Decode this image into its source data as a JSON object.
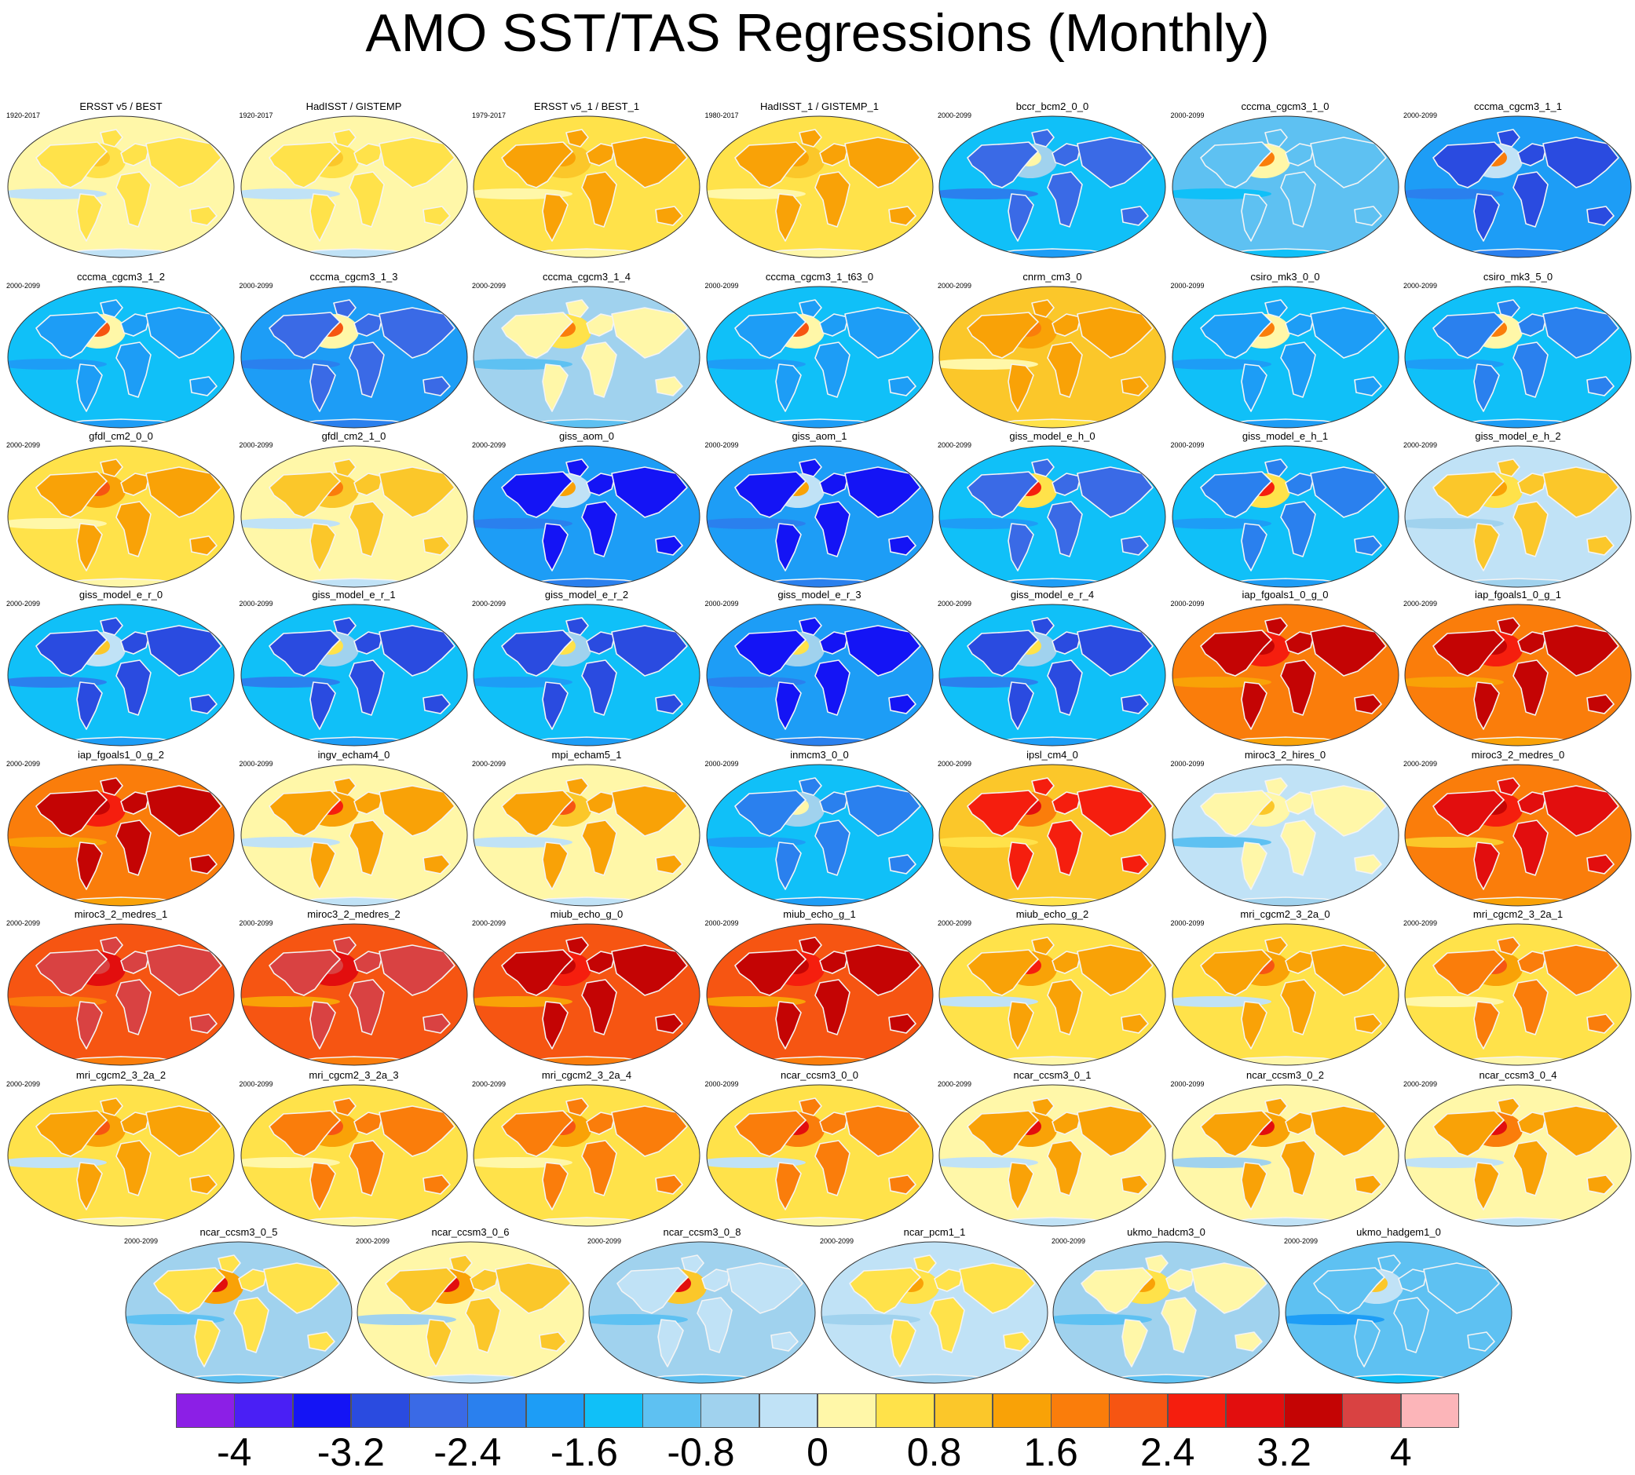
{
  "title": "AMO SST/TAS Regressions (Monthly)",
  "panels": [
    {
      "name": "ERSST v5 / BEST",
      "period": "1920-2017",
      "amo": 1.0,
      "land": 0.6,
      "bg": 0.1
    },
    {
      "name": "HadISST / GISTEMP",
      "period": "1920-2017",
      "amo": 1.0,
      "land": 0.5,
      "bg": 0.1
    },
    {
      "name": "ERSST v5_1 / BEST_1",
      "period": "1979-2017",
      "amo": 1.3,
      "land": 1.2,
      "bg": 0.6
    },
    {
      "name": "HadISST_1 / GISTEMP_1",
      "period": "1980-2017",
      "amo": 1.3,
      "land": 1.2,
      "bg": 0.6
    },
    {
      "name": "bccr_bcm2_0_0",
      "period": "2000-2099",
      "amo": 0.0,
      "land": -2.6,
      "bg": -1.6
    },
    {
      "name": "cccma_cgcm3_1_0",
      "period": "2000-2099",
      "amo": 1.6,
      "land": -1.2,
      "bg": -0.9
    },
    {
      "name": "cccma_cgcm3_1_1",
      "period": "2000-2099",
      "amo": 1.6,
      "land": -3.0,
      "bg": -1.8
    },
    {
      "name": "cccma_cgcm3_1_2",
      "period": "2000-2099",
      "amo": 2.0,
      "land": -2.0,
      "bg": -1.5
    },
    {
      "name": "cccma_cgcm3_1_3",
      "period": "2000-2099",
      "amo": 2.0,
      "land": -2.6,
      "bg": -1.8
    },
    {
      "name": "cccma_cgcm3_1_4",
      "period": "2000-2099",
      "amo": 1.8,
      "land": 0.3,
      "bg": -0.5
    },
    {
      "name": "cccma_cgcm3_1_t63_0",
      "period": "2000-2099",
      "amo": 2.0,
      "land": -1.8,
      "bg": -1.4
    },
    {
      "name": "cnrm_cm3_0",
      "period": "2000-2099",
      "amo": 1.6,
      "land": 1.4,
      "bg": 0.8
    },
    {
      "name": "csiro_mk3_0_0",
      "period": "2000-2099",
      "amo": 1.8,
      "land": -2.0,
      "bg": -1.4
    },
    {
      "name": "csiro_mk3_5_0",
      "period": "2000-2099",
      "amo": 1.8,
      "land": -2.2,
      "bg": -1.5
    },
    {
      "name": "gfdl_cm2_0_0",
      "period": "2000-2099",
      "amo": 2.0,
      "land": 1.5,
      "bg": 0.6
    },
    {
      "name": "gfdl_cm2_1_0",
      "period": "2000-2099",
      "amo": 1.8,
      "land": 1.0,
      "bg": 0.2
    },
    {
      "name": "giss_aom_0",
      "period": "2000-2099",
      "amo": 1.5,
      "land": -3.4,
      "bg": -1.8
    },
    {
      "name": "giss_aom_1",
      "period": "2000-2099",
      "amo": 1.5,
      "land": -3.4,
      "bg": -1.8
    },
    {
      "name": "giss_model_e_h_0",
      "period": "2000-2099",
      "amo": 2.6,
      "land": -2.6,
      "bg": -1.5
    },
    {
      "name": "giss_model_e_h_1",
      "period": "2000-2099",
      "amo": 2.6,
      "land": -2.4,
      "bg": -1.4
    },
    {
      "name": "giss_model_e_h_2",
      "period": "2000-2099",
      "amo": 1.4,
      "land": 0.8,
      "bg": -0.2
    },
    {
      "name": "giss_model_e_r_0",
      "period": "2000-2099",
      "amo": 1.0,
      "land": -3.2,
      "bg": -1.6
    },
    {
      "name": "giss_model_e_r_1",
      "period": "2000-2099",
      "amo": 0.6,
      "land": -3.0,
      "bg": -1.6
    },
    {
      "name": "giss_model_e_r_2",
      "period": "2000-2099",
      "amo": 0.4,
      "land": -3.0,
      "bg": -1.5
    },
    {
      "name": "giss_model_e_r_3",
      "period": "2000-2099",
      "amo": 0.4,
      "land": -3.4,
      "bg": -1.7
    },
    {
      "name": "giss_model_e_r_4",
      "period": "2000-2099",
      "amo": 0.6,
      "land": -3.2,
      "bg": -1.6
    },
    {
      "name": "iap_fgoals1_0_g_0",
      "period": "2000-2099",
      "amo": 3.4,
      "land": 3.4,
      "bg": 1.8
    },
    {
      "name": "iap_fgoals1_0_g_1",
      "period": "2000-2099",
      "amo": 3.4,
      "land": 3.4,
      "bg": 1.8
    },
    {
      "name": "iap_fgoals1_0_g_2",
      "period": "2000-2099",
      "amo": 3.4,
      "land": 3.2,
      "bg": 1.8
    },
    {
      "name": "ingv_echam4_0",
      "period": "2000-2099",
      "amo": 2.4,
      "land": 1.4,
      "bg": 0.2
    },
    {
      "name": "mpi_echam5_1",
      "period": "2000-2099",
      "amo": 2.0,
      "land": 1.4,
      "bg": 0.3
    },
    {
      "name": "inmcm3_0_0",
      "period": "2000-2099",
      "amo": 0.2,
      "land": -2.2,
      "bg": -1.4
    },
    {
      "name": "ipsl_cm4_0",
      "period": "2000-2099",
      "amo": 2.8,
      "land": 2.4,
      "bg": 1.0
    },
    {
      "name": "miroc3_2_hires_0",
      "period": "2000-2099",
      "amo": 0.8,
      "land": 0.2,
      "bg": -0.4
    },
    {
      "name": "miroc3_2_medres_0",
      "period": "2000-2099",
      "amo": 3.2,
      "land": 3.0,
      "bg": 1.6
    },
    {
      "name": "miroc3_2_medres_1",
      "period": "2000-2099",
      "amo": 3.6,
      "land": 3.6,
      "bg": 2.2
    },
    {
      "name": "miroc3_2_medres_2",
      "period": "2000-2099",
      "amo": 3.6,
      "land": 3.6,
      "bg": 2.0
    },
    {
      "name": "miub_echo_g_0",
      "period": "2000-2099",
      "amo": 3.2,
      "land": 3.2,
      "bg": 2.0
    },
    {
      "name": "miub_echo_g_1",
      "period": "2000-2099",
      "amo": 3.2,
      "land": 3.2,
      "bg": 2.0
    },
    {
      "name": "miub_echo_g_2",
      "period": "2000-2099",
      "amo": 2.6,
      "land": 1.4,
      "bg": 0.4
    },
    {
      "name": "mri_cgcm2_3_2a_0",
      "period": "2000-2099",
      "amo": 2.0,
      "land": 1.4,
      "bg": 0.4
    },
    {
      "name": "mri_cgcm2_3_2a_1",
      "period": "2000-2099",
      "amo": 2.2,
      "land": 1.6,
      "bg": 0.5
    },
    {
      "name": "mri_cgcm2_3_2a_2",
      "period": "2000-2099",
      "amo": 2.0,
      "land": 1.4,
      "bg": 0.4
    },
    {
      "name": "mri_cgcm2_3_2a_3",
      "period": "2000-2099",
      "amo": 2.2,
      "land": 1.6,
      "bg": 0.6
    },
    {
      "name": "mri_cgcm2_3_2a_4",
      "period": "2000-2099",
      "amo": 2.2,
      "land": 1.6,
      "bg": 0.5
    },
    {
      "name": "ncar_ccsm3_0_0",
      "period": "2000-2099",
      "amo": 3.0,
      "land": 1.8,
      "bg": 0.4
    },
    {
      "name": "ncar_ccsm3_0_1",
      "period": "2000-2099",
      "amo": 3.0,
      "land": 1.2,
      "bg": 0.1
    },
    {
      "name": "ncar_ccsm3_0_2",
      "period": "2000-2099",
      "amo": 3.0,
      "land": 1.2,
      "bg": 0.0
    },
    {
      "name": "ncar_ccsm3_0_4",
      "period": "2000-2099",
      "amo": 3.0,
      "land": 1.4,
      "bg": 0.2
    },
    {
      "name": "ncar_ccsm3_0_5",
      "period": "2000-2099",
      "amo": 3.0,
      "land": 0.4,
      "bg": -0.5
    },
    {
      "name": "ncar_ccsm3_0_6",
      "period": "2000-2099",
      "amo": 3.0,
      "land": 1.0,
      "bg": 0.0
    },
    {
      "name": "ncar_ccsm3_0_8",
      "period": "2000-2099",
      "amo": 2.8,
      "land": -0.4,
      "bg": -0.7
    },
    {
      "name": "ncar_pcm1_1",
      "period": "2000-2099",
      "amo": 1.4,
      "land": 0.4,
      "bg": -0.3
    },
    {
      "name": "ukmo_hadcm3_0",
      "period": "2000-2099",
      "amo": 1.4,
      "land": 0.2,
      "bg": -0.5
    },
    {
      "name": "ukmo_hadgem1_0",
      "period": "2000-2099",
      "amo": 0.8,
      "land": -1.2,
      "bg": -1.2
    }
  ],
  "colorbar": {
    "levels": [
      -4,
      -3.6,
      -3.2,
      -2.8,
      -2.4,
      -2,
      -1.6,
      -1.2,
      -0.8,
      -0.4,
      0,
      0.4,
      0.8,
      1.2,
      1.6,
      2,
      2.4,
      2.8,
      3.2,
      3.6,
      4
    ],
    "colors": [
      "#8c1fe6",
      "#4a1ff5",
      "#1414f5",
      "#2a4be0",
      "#3a6ae6",
      "#2a80ee",
      "#1d9df6",
      "#10c0f8",
      "#5ec1f2",
      "#a0d2ee",
      "#c0e2f6",
      "#fff7a8",
      "#ffe24a",
      "#fbc72a",
      "#f9a207",
      "#fa7d0b",
      "#f65512",
      "#f51e0e",
      "#e20e0e",
      "#c40404",
      "#d94242",
      "#fcb5b9"
    ],
    "labels": [
      "-4",
      "-3.2",
      "-2.4",
      "-1.6",
      "-0.8",
      "0",
      "0.8",
      "1.6",
      "2.4",
      "3.2",
      "4"
    ],
    "label_values": [
      -4,
      -3.2,
      -2.4,
      -1.6,
      -0.8,
      0,
      0.8,
      1.6,
      2.4,
      3.2,
      4
    ]
  }
}
